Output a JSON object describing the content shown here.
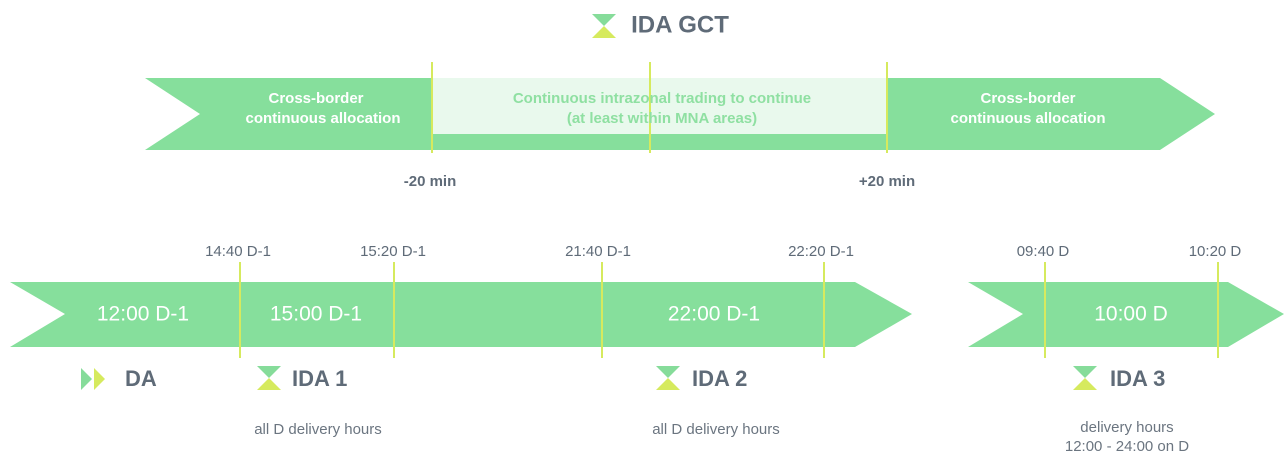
{
  "title": "IDA GCT",
  "top_arrow": {
    "segments": [
      [
        "Cross-border",
        "continuous allocation"
      ],
      [
        "Continuous intrazonal trading to continue",
        "(at least within MNA areas)"
      ],
      [
        "Cross-border",
        "continuous allocation"
      ]
    ],
    "offsets": [
      "-20 min",
      "+20 min"
    ]
  },
  "timeline": {
    "times": [
      "14:40 D-1",
      "15:20 D-1",
      "21:40 D-1",
      "22:20 D-1",
      "09:40 D",
      "10:20 D"
    ],
    "periods": [
      "12:00 D-1",
      "15:00 D-1",
      "22:00 D-1",
      "10:00 D"
    ]
  },
  "auctions": [
    {
      "name": "DA"
    },
    {
      "name": "IDA 1",
      "note": [
        "all D delivery hours"
      ]
    },
    {
      "name": "IDA 2",
      "note": [
        "all D delivery hours"
      ]
    },
    {
      "name": "IDA 3",
      "note": [
        "delivery hours",
        "12:00 - 24:00 on D"
      ]
    }
  ]
}
